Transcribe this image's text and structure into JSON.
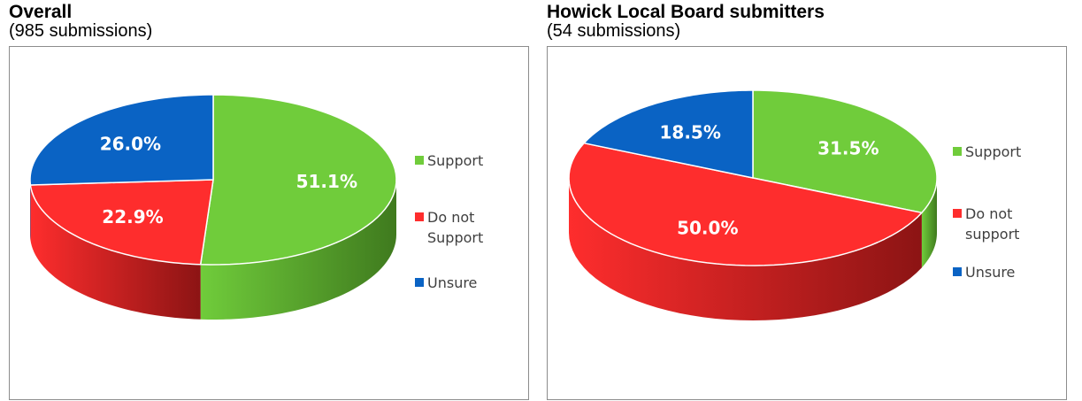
{
  "chart_data": [
    {
      "type": "pie",
      "title": "Overall",
      "subtitle": "(985 submissions)",
      "style": "3d",
      "slices": [
        {
          "label": "Support",
          "value": 51.1,
          "display": "51.1%",
          "color": "#70cc3b",
          "side_color": "#3f7a1e"
        },
        {
          "label": "Do not Support",
          "value": 22.9,
          "display": "22.9%",
          "color": "#fe2d2d",
          "side_color": "#8c1414"
        },
        {
          "label": "Unsure",
          "value": 26.0,
          "display": "26.0%",
          "color": "#0a63c4",
          "side_color": "#063a75"
        }
      ],
      "legend": {
        "placement": "right",
        "entries": [
          {
            "lines": [
              "Support"
            ],
            "color": "#70cc3b"
          },
          {
            "lines": [
              "Do not",
              "Support"
            ],
            "color": "#fe2d2d"
          },
          {
            "lines": [
              "Unsure"
            ],
            "color": "#0a63c4"
          }
        ]
      }
    },
    {
      "type": "pie",
      "title": "Howick Local Board submitters",
      "subtitle": "(54 submissions)",
      "style": "3d",
      "slices": [
        {
          "label": "Support",
          "value": 31.5,
          "display": "31.5%",
          "color": "#70cc3b",
          "side_color": "#3f7a1e"
        },
        {
          "label": "Do not support",
          "value": 50.0,
          "display": "50.0%",
          "color": "#fe2d2d",
          "side_color": "#8c1414"
        },
        {
          "label": "Unsure",
          "value": 18.5,
          "display": "18.5%",
          "color": "#0a63c4",
          "side_color": "#063a75"
        }
      ],
      "legend": {
        "placement": "right",
        "entries": [
          {
            "lines": [
              "Support"
            ],
            "color": "#70cc3b"
          },
          {
            "lines": [
              "Do not",
              "support"
            ],
            "color": "#fe2d2d"
          },
          {
            "lines": [
              "Unsure"
            ],
            "color": "#0a63c4"
          }
        ]
      }
    }
  ]
}
